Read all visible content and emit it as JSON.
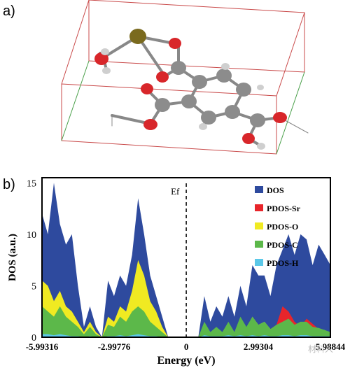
{
  "panel_a": {
    "label": "a)"
  },
  "panel_b": {
    "label": "b)"
  },
  "chart_data": {
    "type": "area",
    "title": "",
    "xlabel": "Energy (eV)",
    "ylabel": "DOS (a.u.)",
    "xlim": [
      -5.99316,
      5.98844
    ],
    "ylim": [
      0,
      15.5
    ],
    "x_tick_labels": [
      "-5.99316",
      "-2.99776",
      "0",
      "2.99304",
      "5.98844"
    ],
    "x_tick_values": [
      -5.99316,
      -2.99776,
      0,
      2.99304,
      5.98844
    ],
    "y_ticks": [
      0,
      5,
      10,
      15
    ],
    "fermi_label": "Ef",
    "fermi_energy": 0,
    "legend_position": "top-right",
    "x": [
      -5.99,
      -5.75,
      -5.5,
      -5.25,
      -5.0,
      -4.75,
      -4.5,
      -4.25,
      -4.0,
      -3.75,
      -3.5,
      -3.25,
      -3.0,
      -2.75,
      -2.5,
      -2.25,
      -2.0,
      -1.75,
      -1.5,
      -1.25,
      -1.0,
      -0.75,
      -0.5,
      -0.25,
      0.0,
      0.25,
      0.5,
      0.75,
      1.0,
      1.25,
      1.5,
      1.75,
      2.0,
      2.25,
      2.5,
      2.75,
      3.0,
      3.25,
      3.5,
      3.75,
      4.0,
      4.25,
      4.5,
      4.75,
      5.0,
      5.25,
      5.5,
      5.75,
      5.99
    ],
    "series": [
      {
        "name": "DOS",
        "color": "#2e4a9e",
        "values": [
          12.0,
          10.0,
          15.0,
          11.0,
          9.0,
          10.0,
          5.0,
          1.0,
          3.0,
          1.0,
          0.0,
          5.5,
          4.0,
          6.0,
          5.0,
          8.0,
          13.5,
          10.0,
          6.0,
          4.0,
          2.0,
          0.0,
          0.0,
          0.0,
          0.0,
          0.0,
          0.0,
          4.0,
          1.5,
          3.0,
          2.0,
          4.0,
          2.0,
          5.0,
          3.0,
          7.0,
          6.0,
          6.0,
          4.0,
          7.0,
          8.5,
          10.0,
          8.0,
          10.0,
          9.5,
          7.0,
          9.0,
          8.0,
          7.0
        ]
      },
      {
        "name": "PDOS-Sr",
        "color": "#e8252b",
        "values": [
          0,
          0,
          0,
          0,
          0,
          0,
          0,
          0,
          0,
          0,
          0,
          0,
          0,
          0,
          0,
          0,
          0,
          0,
          0,
          0,
          0,
          0,
          0,
          0,
          0,
          0,
          0,
          0,
          0,
          0,
          0,
          0,
          0,
          0,
          0,
          0,
          0.3,
          0.5,
          0.8,
          1.2,
          3.0,
          2.5,
          1.5,
          1.0,
          1.8,
          1.3,
          0.8,
          0.6,
          0.3
        ]
      },
      {
        "name": "PDOS-O",
        "color": "#f0ea22",
        "values": [
          5.5,
          5.0,
          3.5,
          4.5,
          3.0,
          2.5,
          1.5,
          0.5,
          1.5,
          0.5,
          0.0,
          2.0,
          1.5,
          3.0,
          2.5,
          4.5,
          7.5,
          6.0,
          3.5,
          2.5,
          1.0,
          0,
          0,
          0,
          0,
          0,
          0,
          1.0,
          0.5,
          0.7,
          0.5,
          1.0,
          0.5,
          1.5,
          0.8,
          2.0,
          1.2,
          1.5,
          0.8,
          1.0,
          1.2,
          1.5,
          1.0,
          1.5,
          1.2,
          1.0,
          0.8,
          0.7,
          0.4
        ]
      },
      {
        "name": "PDOS-C",
        "color": "#5cb84a",
        "values": [
          3.0,
          2.5,
          2.0,
          3.0,
          2.0,
          1.5,
          1.0,
          0.3,
          1.0,
          0.3,
          0.0,
          1.2,
          1.0,
          2.0,
          1.5,
          2.5,
          3.0,
          2.5,
          1.5,
          1.0,
          0.5,
          0,
          0,
          0,
          0,
          0,
          0,
          1.5,
          0.5,
          1.0,
          0.5,
          1.5,
          0.5,
          2.0,
          1.0,
          2.0,
          1.2,
          1.5,
          0.8,
          1.2,
          1.5,
          1.8,
          1.2,
          1.5,
          1.5,
          1.0,
          0.9,
          0.7,
          0.5
        ]
      },
      {
        "name": "PDOS-H",
        "color": "#5bc8e8",
        "values": [
          0.3,
          0.3,
          0.2,
          0.3,
          0.2,
          0.1,
          0.1,
          0.0,
          0.1,
          0.0,
          0.0,
          0.1,
          0.1,
          0.2,
          0.1,
          0.2,
          0.3,
          0.2,
          0.1,
          0.1,
          0.0,
          0,
          0,
          0,
          0,
          0,
          0,
          0.2,
          0.1,
          0.1,
          0.1,
          0.2,
          0.1,
          0.2,
          0.1,
          0.2,
          0.1,
          0.2,
          0.1,
          0.1,
          0.2,
          0.2,
          0.1,
          0.2,
          0.2,
          0.1,
          0.1,
          0.1,
          0.1
        ]
      }
    ]
  },
  "colors": {
    "frame": "#000000",
    "atom_sr": "#7a6a1e",
    "atom_o": "#d8262a",
    "atom_c": "#8c8c8c",
    "atom_h": "#cfcfcf",
    "box_red": "#c94a4a",
    "box_green": "#4aa04a"
  },
  "watermark": "材料人"
}
